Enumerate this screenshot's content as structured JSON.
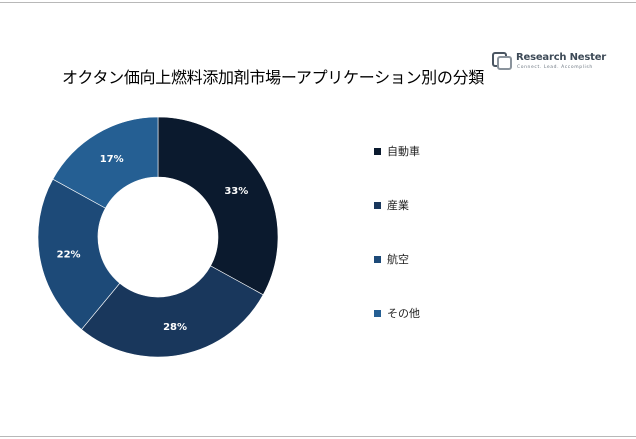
{
  "brand": {
    "name": "Research Nester",
    "tagline": "Connect. Lead. Accomplish"
  },
  "chart_data": {
    "type": "pie",
    "variant": "donut",
    "title": "オクタン価向上燃料添加剤市場ーアプリケーション別の分類",
    "categories": [
      "自動車",
      "産業",
      "航空",
      "その他"
    ],
    "values": [
      33,
      28,
      22,
      17
    ],
    "value_labels": [
      "33%",
      "28%",
      "22%",
      "17%"
    ],
    "colors": [
      "#0b1a2e",
      "#19375c",
      "#1d4a78",
      "#255f93"
    ],
    "legend_position": "right"
  }
}
